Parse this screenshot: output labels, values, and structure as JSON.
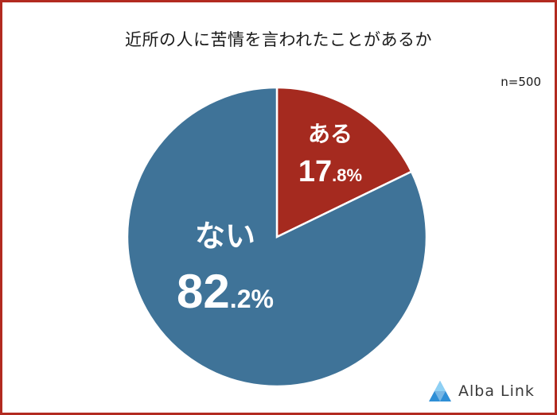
{
  "chart_data": {
    "type": "pie",
    "title": "近所の人に苦情を言われたことがあるか",
    "sample_note": "n=500",
    "slices": [
      {
        "label": "ある",
        "value": 17.8,
        "value_main": "17",
        "value_decimal": ".8%",
        "color": "#a52a1f"
      },
      {
        "label": "ない",
        "value": 82.2,
        "value_main": "82",
        "value_decimal": ".2%",
        "color": "#3f7398"
      }
    ],
    "start": "12 o'clock",
    "direction": "clockwise"
  },
  "brand": {
    "logo_text": "Alba Link"
  }
}
